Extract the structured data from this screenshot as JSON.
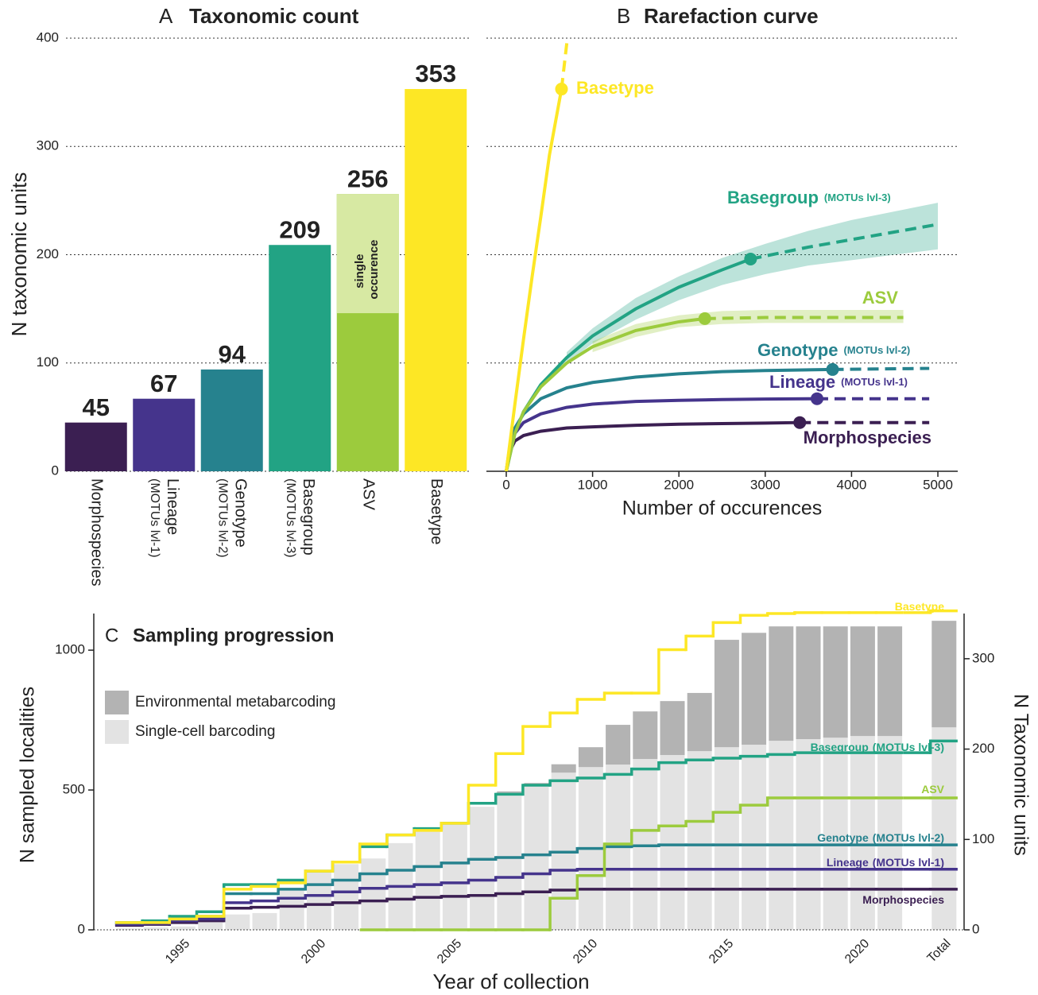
{
  "chart_data": [
    {
      "type": "bar",
      "panel": "A",
      "title": "Taxonomic count",
      "y_label": "N taxonomic units",
      "categories": [
        "Morphospecies",
        "Lineage",
        "Genotype",
        "Basegroup",
        "ASV",
        "Basetype"
      ],
      "category_notes": [
        null,
        "(MOTUs lvl-1)",
        "(MOTUs lvl-2)",
        "(MOTUs lvl-3)",
        null,
        null
      ],
      "values": [
        45,
        67,
        94,
        209,
        256,
        353
      ],
      "colors": [
        "#3b1f52",
        "#45348c",
        "#26828e",
        "#22a384",
        "#9ccb3d",
        "#fde725"
      ],
      "single_occurrence": {
        "label": "single occurence",
        "values": [
          null,
          null,
          null,
          null,
          110,
          null
        ],
        "color": "#d7e9a3"
      },
      "ylim": [
        0,
        400
      ],
      "yticks": [
        0,
        100,
        200,
        300,
        400
      ],
      "grid": true
    },
    {
      "type": "line",
      "panel": "B",
      "title": "Rarefaction curve",
      "x_label": "Number of occurences",
      "xlim": [
        -230,
        5230
      ],
      "xticks": [
        0,
        1000,
        2000,
        3000,
        4000,
        5000
      ],
      "ylim": [
        0,
        400
      ],
      "yticks": [
        0,
        100,
        200,
        300,
        400
      ],
      "grid": true,
      "ytick_labels": false,
      "series": [
        {
          "name": "Morphospecies",
          "color": "#3b1f52",
          "x": [
            0,
            50,
            100,
            200,
            400,
            700,
            1000,
            1500,
            2000,
            2500,
            3000,
            3400
          ],
          "values": [
            0,
            20,
            28,
            33,
            37,
            40,
            41,
            42.5,
            43.5,
            44,
            44.5,
            45
          ],
          "x_extrapolated": [
            3400,
            4000,
            4900
          ],
          "values_extrapolated": [
            45,
            45,
            45
          ]
        },
        {
          "name": "Lineage",
          "note": "(MOTUs lvl-1)",
          "color": "#45348c",
          "x": [
            0,
            50,
            100,
            200,
            400,
            700,
            1000,
            1500,
            2000,
            2500,
            3000,
            3600
          ],
          "values": [
            0,
            25,
            35,
            45,
            53,
            59,
            62,
            64.5,
            65.5,
            66.2,
            66.7,
            67
          ],
          "x_extrapolated": [
            3600,
            4200,
            4900
          ],
          "values_extrapolated": [
            67,
            67,
            67
          ]
        },
        {
          "name": "Genotype",
          "note": "(MOTUs lvl-2)",
          "color": "#26828e",
          "x": [
            0,
            50,
            100,
            200,
            400,
            700,
            1000,
            1500,
            2000,
            2500,
            3000,
            3780
          ],
          "values": [
            0,
            28,
            40,
            53,
            67,
            77,
            82,
            87,
            90,
            92,
            93,
            94
          ],
          "x_extrapolated": [
            3780,
            4300,
            4900
          ],
          "values_extrapolated": [
            94,
            94.5,
            95
          ]
        },
        {
          "name": "Basegroup",
          "note": "(MOTUs lvl-3)",
          "color": "#22a384",
          "x": [
            0,
            100,
            200,
            400,
            700,
            1000,
            1500,
            2000,
            2500,
            2830
          ],
          "values": [
            0,
            35,
            55,
            80,
            105,
            125,
            150,
            170,
            186,
            196
          ],
          "x_extrapolated": [
            2830,
            3500,
            4000,
            4500,
            5000
          ],
          "values_extrapolated": [
            196,
            207,
            214,
            221,
            228
          ],
          "band": {
            "x": [
              700,
              1000,
              1500,
              2000,
              2500,
              3000,
              3500,
              4000,
              4500,
              5000
            ],
            "lower": [
              100,
              118,
              140,
              158,
              172,
              182,
              190,
              195,
              200,
              205
            ],
            "upper": [
              110,
              132,
              160,
              180,
              197,
              210,
              222,
              232,
              240,
              248
            ]
          }
        },
        {
          "name": "ASV",
          "color": "#9ccb3d",
          "x": [
            0,
            100,
            200,
            400,
            700,
            1000,
            1500,
            2000,
            2300
          ],
          "values": [
            0,
            35,
            55,
            78,
            100,
            115,
            130,
            138,
            141
          ],
          "x_extrapolated": [
            2300,
            3000,
            3500,
            4000,
            4600
          ],
          "values_extrapolated": [
            141,
            142,
            142,
            142,
            142
          ],
          "band": {
            "x": [
              1000,
              1500,
              2000,
              2500,
              3000,
              3500,
              4000,
              4600
            ],
            "lower": [
              110,
              124,
              133,
              136,
              137,
              137,
              137,
              137
            ],
            "upper": [
              120,
              136,
              144,
              148,
              149,
              149,
              149,
              149
            ]
          }
        },
        {
          "name": "Basetype",
          "color": "#fde725",
          "x": [
            0,
            100,
            200,
            300,
            400,
            500,
            640
          ],
          "values": [
            0,
            62,
            122,
            180,
            235,
            292,
            353
          ],
          "x_extrapolated": [
            640,
            705
          ],
          "values_extrapolated": [
            353,
            398
          ]
        }
      ]
    },
    {
      "type": "combo",
      "panel": "C",
      "title": "Sampling progression",
      "x_label": "Year of collection",
      "y_label": "N sampled localities",
      "y2_label": "N Taxonomic units",
      "categories": [
        null,
        null,
        "1995",
        null,
        null,
        null,
        null,
        "2000",
        null,
        null,
        null,
        null,
        "2005",
        null,
        null,
        null,
        null,
        "2010",
        null,
        null,
        null,
        null,
        "2015",
        null,
        null,
        null,
        null,
        "2020",
        null,
        "Total"
      ],
      "ylim": [
        0,
        1131
      ],
      "yticks": [
        0,
        500,
        1000
      ],
      "y2lim": [
        0,
        350
      ],
      "y2ticks": [
        0,
        100,
        200,
        300
      ],
      "series": [
        {
          "name": "Single-cell barcoding",
          "type": "bar",
          "color": "#e3e3e3",
          "values": [
            5,
            8,
            12,
            28,
            55,
            60,
            150,
            215,
            235,
            255,
            310,
            360,
            380,
            440,
            490,
            520,
            562,
            582,
            591,
            611,
            625,
            639,
            653,
            662,
            676,
            682,
            687,
            693,
            693,
            724
          ]
        },
        {
          "name": "Environmental metabarcoding",
          "type": "bar",
          "color": "#b3b3b3",
          "values": [
            0,
            0,
            0,
            0,
            0,
            0,
            0,
            0,
            0,
            0,
            0,
            0,
            0,
            0,
            5,
            5,
            30,
            71,
            142,
            170,
            193,
            208,
            384,
            400,
            409,
            403,
            398,
            392,
            392,
            381
          ]
        },
        {
          "name": "Morphospecies",
          "type": "step",
          "axis": "y2",
          "color": "#3b1f52",
          "values": [
            5,
            6,
            8,
            10,
            24,
            25,
            26,
            28,
            30,
            32,
            34,
            36,
            37,
            38,
            40,
            42,
            44,
            45,
            45,
            45,
            45,
            45,
            45,
            45,
            45,
            45,
            45,
            45,
            45,
            45
          ]
        },
        {
          "name": "Lineage",
          "note": "(MOTUs lvl-1)",
          "type": "step",
          "axis": "y2",
          "color": "#45348c",
          "values": [
            6,
            7,
            10,
            12,
            30,
            32,
            35,
            38,
            42,
            46,
            48,
            50,
            52,
            55,
            58,
            62,
            66,
            67,
            67,
            67,
            67,
            67,
            67,
            67,
            67,
            67,
            67,
            67,
            67,
            67
          ]
        },
        {
          "name": "Genotype",
          "note": "(MOTUs lvl-2)",
          "type": "step",
          "axis": "y2",
          "color": "#26828e",
          "values": [
            8,
            9,
            12,
            15,
            40,
            40,
            45,
            50,
            55,
            62,
            66,
            70,
            74,
            78,
            80,
            83,
            86,
            90,
            92,
            93,
            94,
            94,
            94,
            94,
            94,
            94,
            94,
            94,
            94,
            94
          ]
        },
        {
          "name": "Basegroup",
          "note": "(MOTUs lvl-3)",
          "type": "step",
          "axis": "y2",
          "color": "#22a384",
          "values": [
            8,
            10,
            15,
            20,
            50,
            50,
            55,
            65,
            75,
            92,
            105,
            112,
            118,
            140,
            150,
            160,
            165,
            168,
            172,
            178,
            185,
            188,
            190,
            192,
            194,
            196,
            196,
            196,
            196,
            209
          ]
        },
        {
          "name": "ASV",
          "type": "step",
          "axis": "y2",
          "color": "#9ccb3d",
          "values": [
            null,
            null,
            null,
            null,
            null,
            null,
            null,
            null,
            null,
            0,
            0,
            0,
            0,
            0,
            0,
            0,
            35,
            60,
            95,
            110,
            115,
            120,
            130,
            138,
            146,
            146,
            146,
            146,
            146,
            146
          ]
        },
        {
          "name": "Basetype",
          "type": "step",
          "axis": "y2",
          "color": "#fde725",
          "values": [
            8,
            8,
            12,
            15,
            45,
            48,
            52,
            65,
            75,
            95,
            105,
            110,
            118,
            160,
            195,
            225,
            240,
            255,
            262,
            262,
            310,
            325,
            340,
            348,
            350,
            351,
            351,
            351,
            351,
            353
          ]
        }
      ]
    }
  ]
}
